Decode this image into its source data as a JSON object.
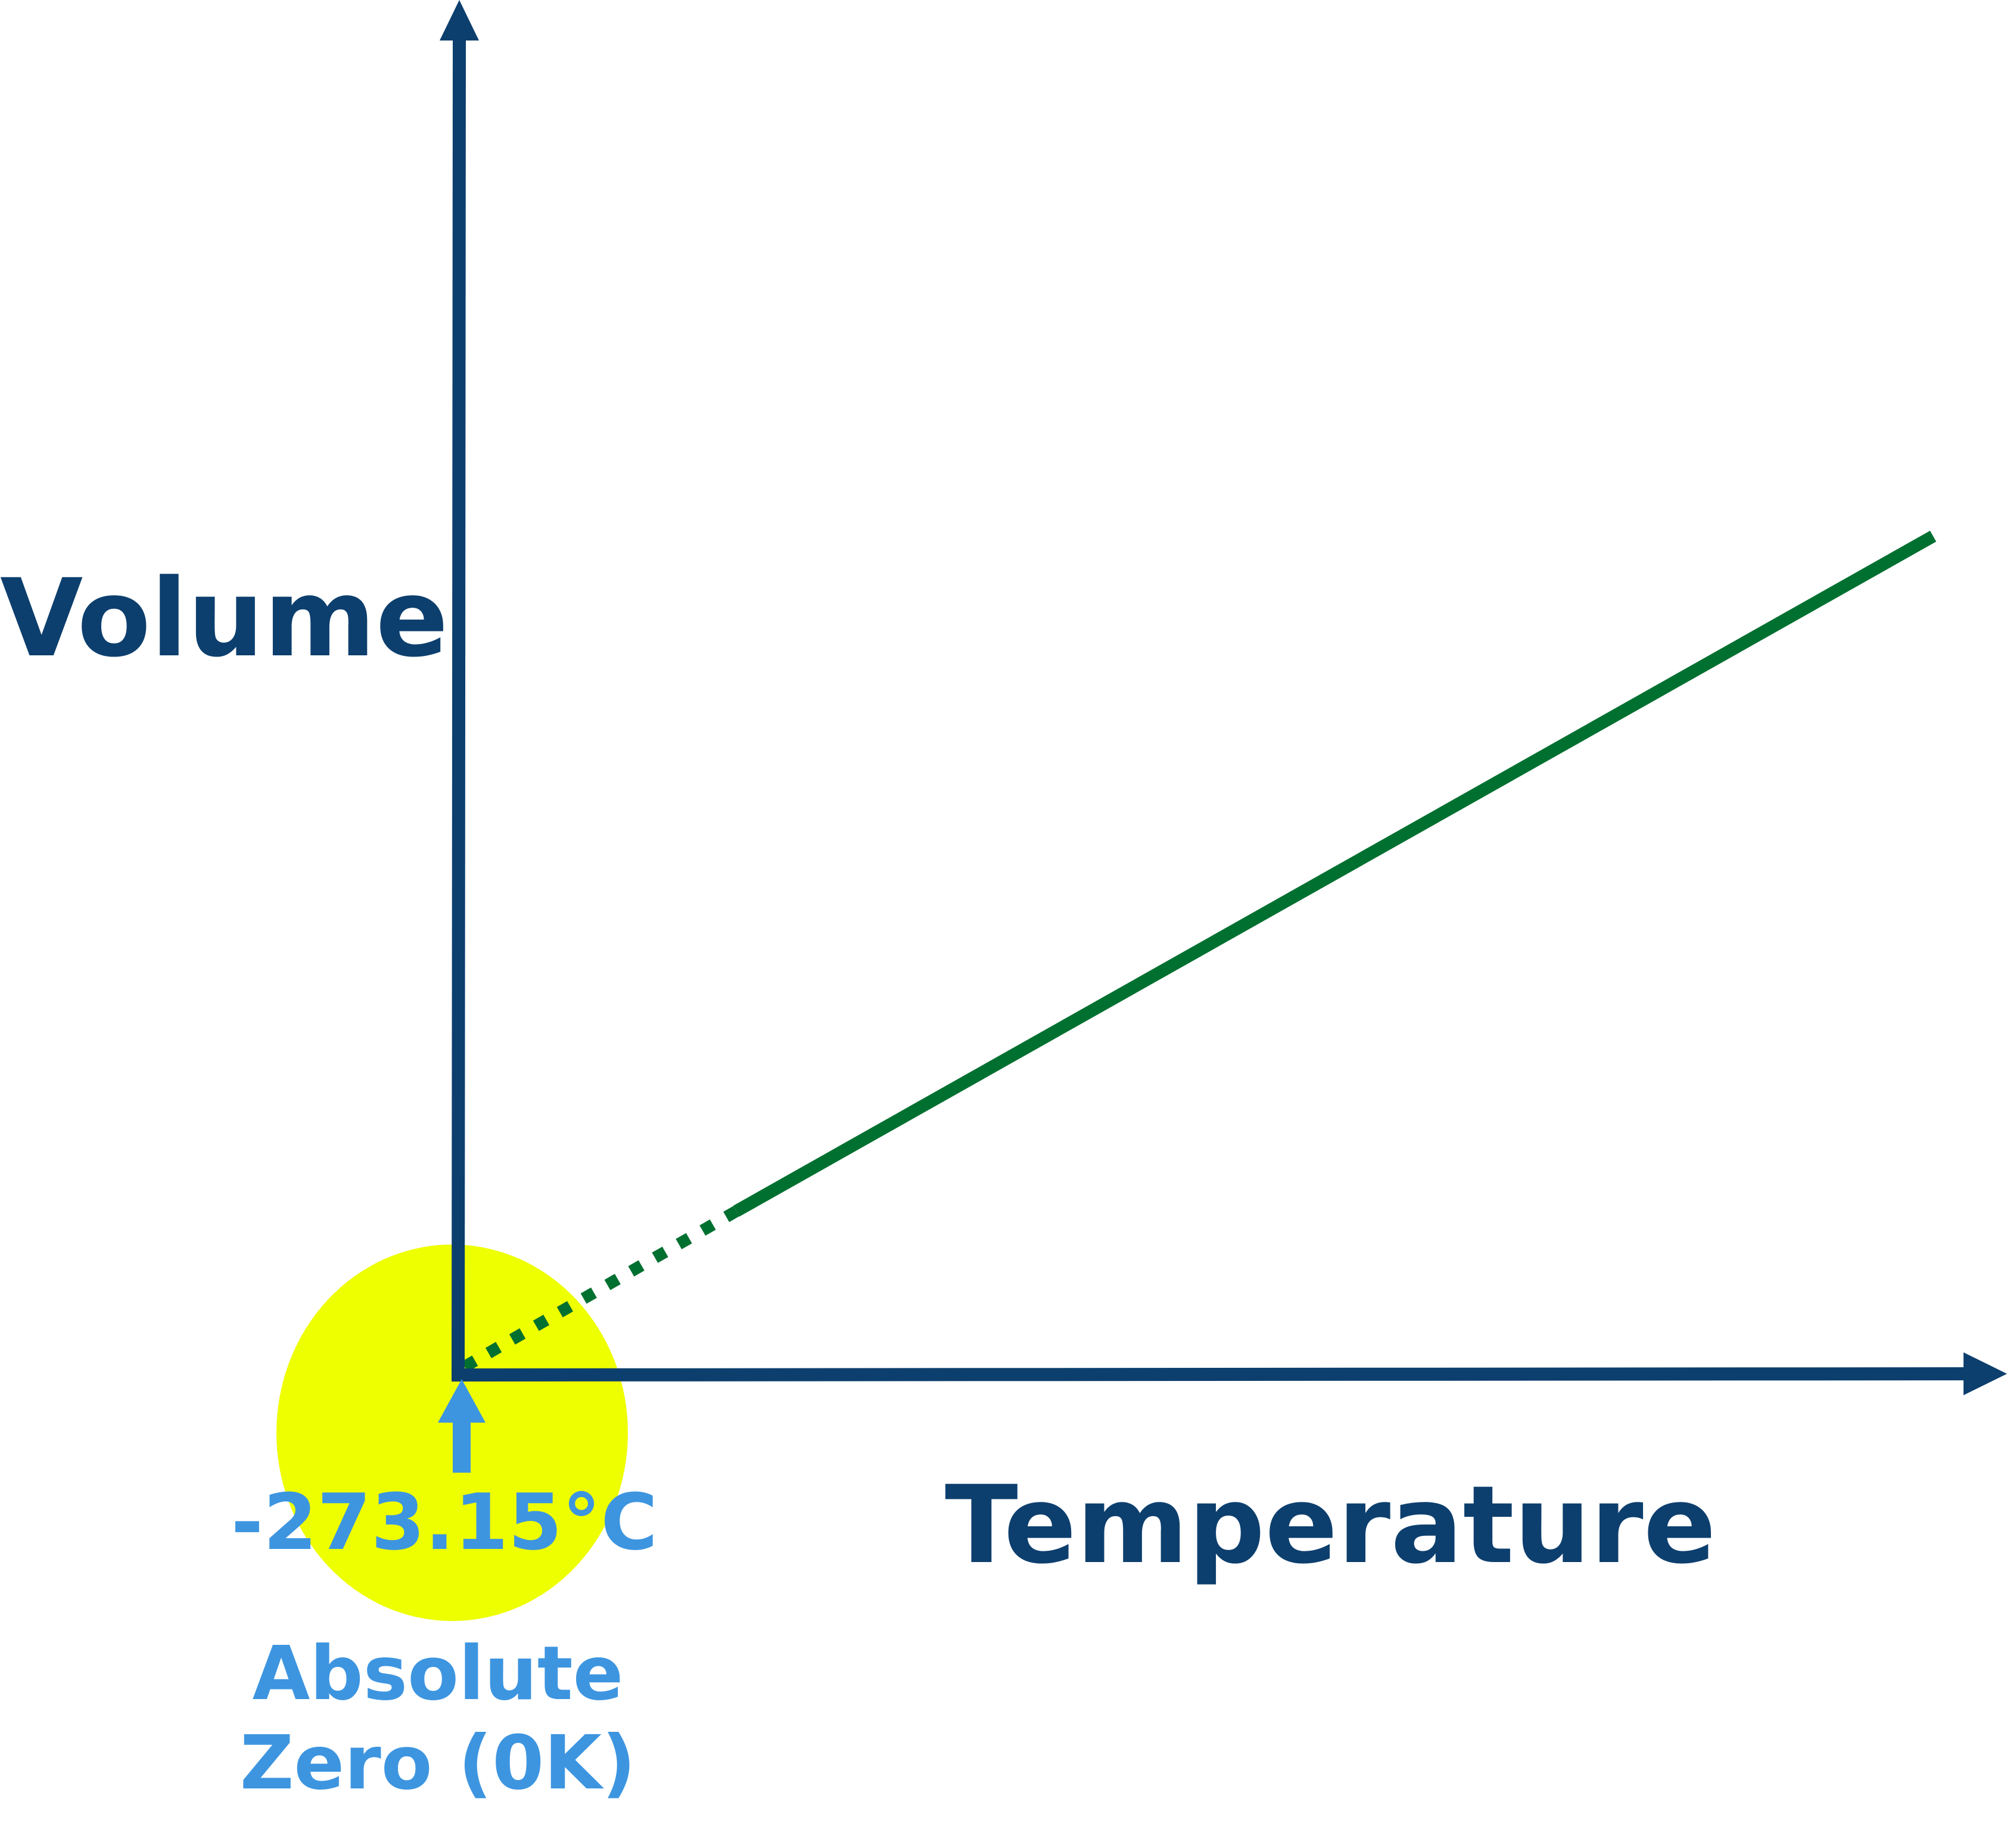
{
  "y_axis_label": "Volume",
  "x_axis_label": "Temperature",
  "point_label": "-273.15°C",
  "annotation": {
    "lines": [
      "Absolute",
      "Zero (0K)"
    ]
  }
}
